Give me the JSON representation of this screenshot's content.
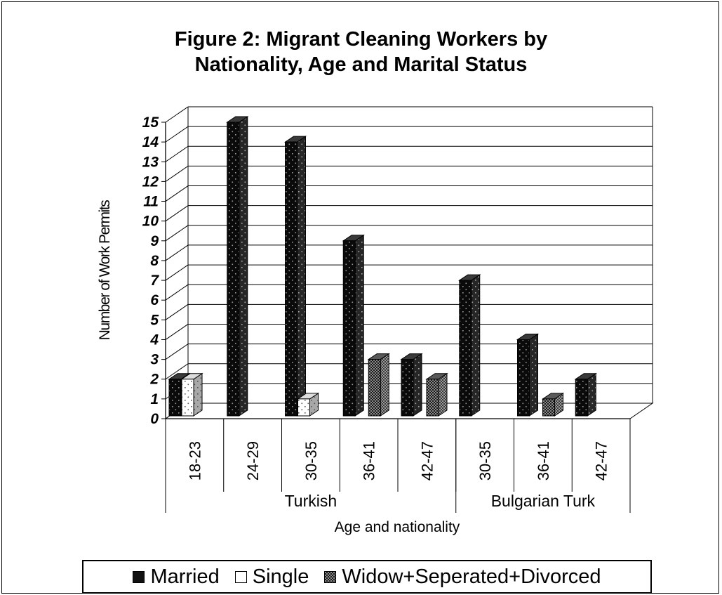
{
  "chart_data": {
    "type": "bar",
    "title_lines": [
      "Figure 2: Migrant Cleaning Workers by",
      "Nationality, Age and Marital Status"
    ],
    "xlabel": "Age and nationality",
    "ylabel": "Number of Work Permits",
    "ylim": [
      0,
      15
    ],
    "yticks": [
      0,
      1,
      2,
      3,
      4,
      5,
      6,
      7,
      8,
      9,
      10,
      11,
      12,
      13,
      14,
      15
    ],
    "grid": true,
    "groups": [
      {
        "label": "Turkish",
        "categories": [
          "18-23",
          "24-29",
          "30-35",
          "36-41",
          "42-47"
        ]
      },
      {
        "label": "Bulgarian Turk",
        "categories": [
          "30-35",
          "36-41",
          "42-47"
        ]
      }
    ],
    "series": [
      {
        "name": "Married",
        "color": "#111111",
        "values": [
          2,
          15,
          14,
          9,
          3,
          7,
          4,
          2
        ]
      },
      {
        "name": "Single",
        "color": "#ffffff",
        "values": [
          2,
          0,
          1,
          0,
          0,
          0,
          0,
          0
        ]
      },
      {
        "name": "Widow+Seperated+Divorced",
        "color": "#333333",
        "values": [
          0,
          0,
          0,
          3,
          2,
          0,
          1,
          0
        ]
      }
    ],
    "legend_position": "bottom"
  }
}
